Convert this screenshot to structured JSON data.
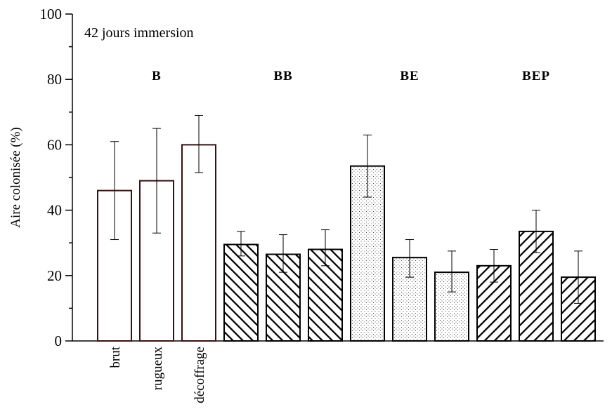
{
  "chart_data": {
    "type": "bar",
    "ylabel": "Aire colonisée (%)",
    "ylim": [
      0,
      100
    ],
    "yticks": [
      0,
      20,
      40,
      60,
      80,
      100
    ],
    "annotation": "42 jours immersion",
    "groups": [
      {
        "label": "B",
        "pattern": "open"
      },
      {
        "label": "BB",
        "pattern": "hatch-back"
      },
      {
        "label": "BE",
        "pattern": "dots"
      },
      {
        "label": "BEP",
        "pattern": "hatch-forward"
      }
    ],
    "categories": [
      "brut",
      "rugueux",
      "décoffrage"
    ],
    "bars": [
      {
        "group": "B",
        "category": "brut",
        "value": 46,
        "err_low": 31,
        "err_high": 61
      },
      {
        "group": "B",
        "category": "rugueux",
        "value": 49,
        "err_low": 33,
        "err_high": 65
      },
      {
        "group": "B",
        "category": "décoffrage",
        "value": 60,
        "err_low": 51.5,
        "err_high": 69
      },
      {
        "group": "BB",
        "category": "brut",
        "value": 29.5,
        "err_low": 26,
        "err_high": 33.5
      },
      {
        "group": "BB",
        "category": "rugueux",
        "value": 26.5,
        "err_low": 21,
        "err_high": 32.5
      },
      {
        "group": "BB",
        "category": "décoffrage",
        "value": 28,
        "err_low": 23,
        "err_high": 34
      },
      {
        "group": "BE",
        "category": "brut",
        "value": 53.5,
        "err_low": 44,
        "err_high": 63
      },
      {
        "group": "BE",
        "category": "rugueux",
        "value": 25.5,
        "err_low": 19.5,
        "err_high": 31
      },
      {
        "group": "BE",
        "category": "décoffrage",
        "value": 21,
        "err_low": 15,
        "err_high": 27.5
      },
      {
        "group": "BEP",
        "category": "brut",
        "value": 23,
        "err_low": 18,
        "err_high": 28
      },
      {
        "group": "BEP",
        "category": "rugueux",
        "value": 33.5,
        "err_low": 27,
        "err_high": 40
      },
      {
        "group": "BEP",
        "category": "décoffrage",
        "value": 19.5,
        "err_low": 11.5,
        "err_high": 27.5
      }
    ],
    "colors": {
      "open_bar_stroke": "#3a1010",
      "ink": "#000000",
      "background": "#ffffff"
    }
  }
}
